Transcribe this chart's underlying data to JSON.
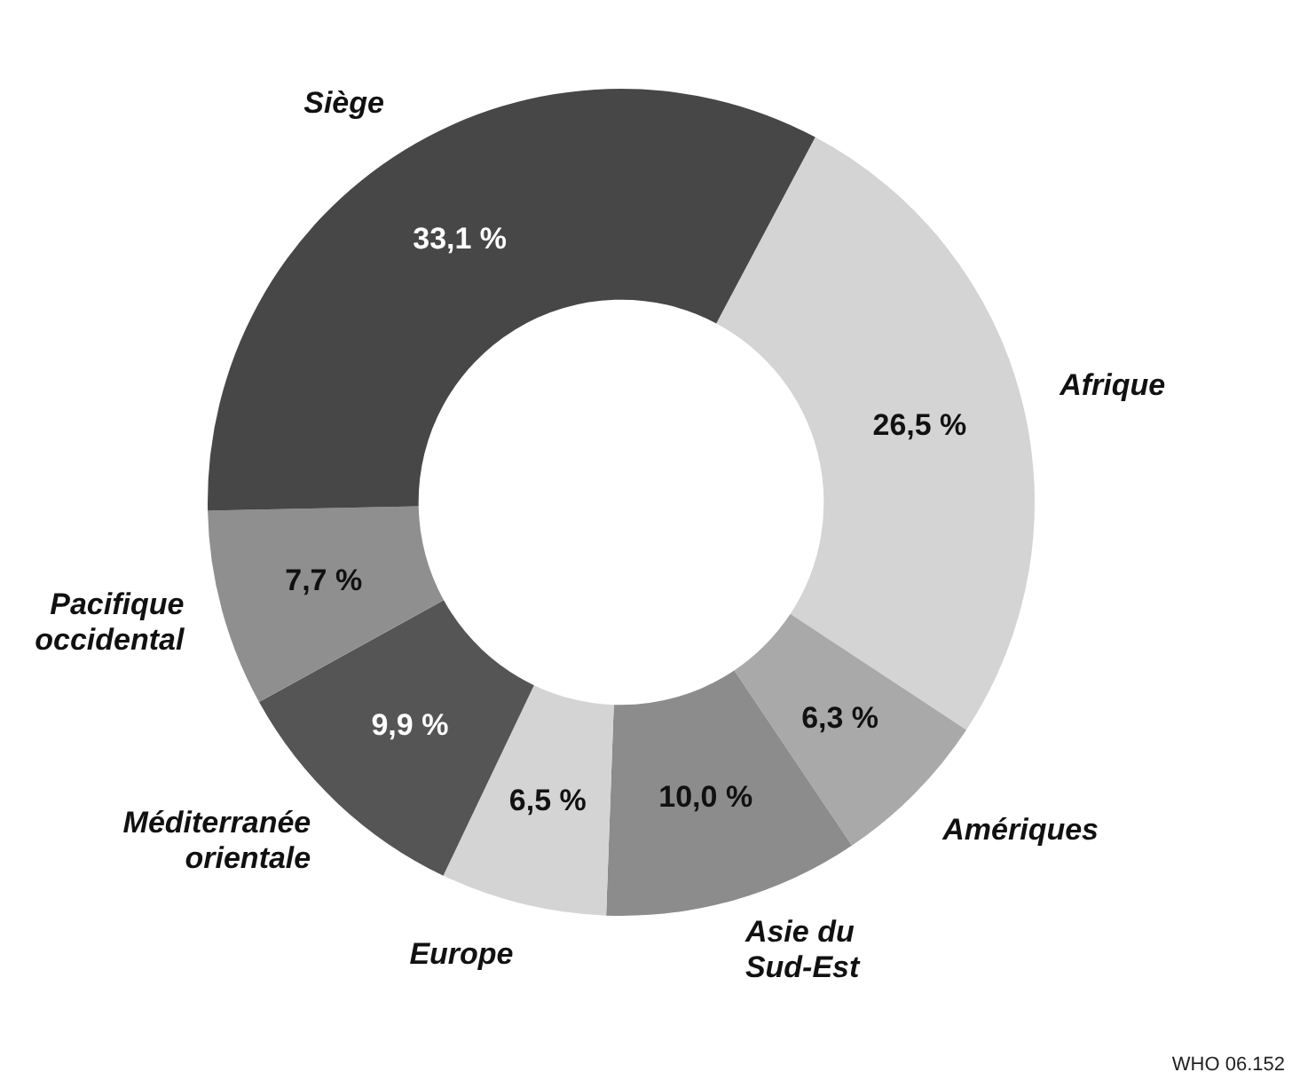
{
  "chart_data": {
    "type": "donut",
    "categories": [
      "Afrique",
      "Amériques",
      "Asie du Sud-Est",
      "Europe",
      "Méditerranée orientale",
      "Pacifique occidental",
      "Siège"
    ],
    "values": [
      26.5,
      6.3,
      10.0,
      6.5,
      9.9,
      7.7,
      33.1
    ],
    "value_labels": [
      "26,5 %",
      "6,3 %",
      "10,0 %",
      "6,5 %",
      "9,9 %",
      "7,7 %",
      "33,1 %"
    ],
    "colors": [
      "#d4d4d4",
      "#a9a9a9",
      "#8c8c8c",
      "#d4d4d4",
      "#555555",
      "#8f8f8f",
      "#474747"
    ],
    "legend": false,
    "annotations": [
      "WHO 06.152"
    ]
  }
}
